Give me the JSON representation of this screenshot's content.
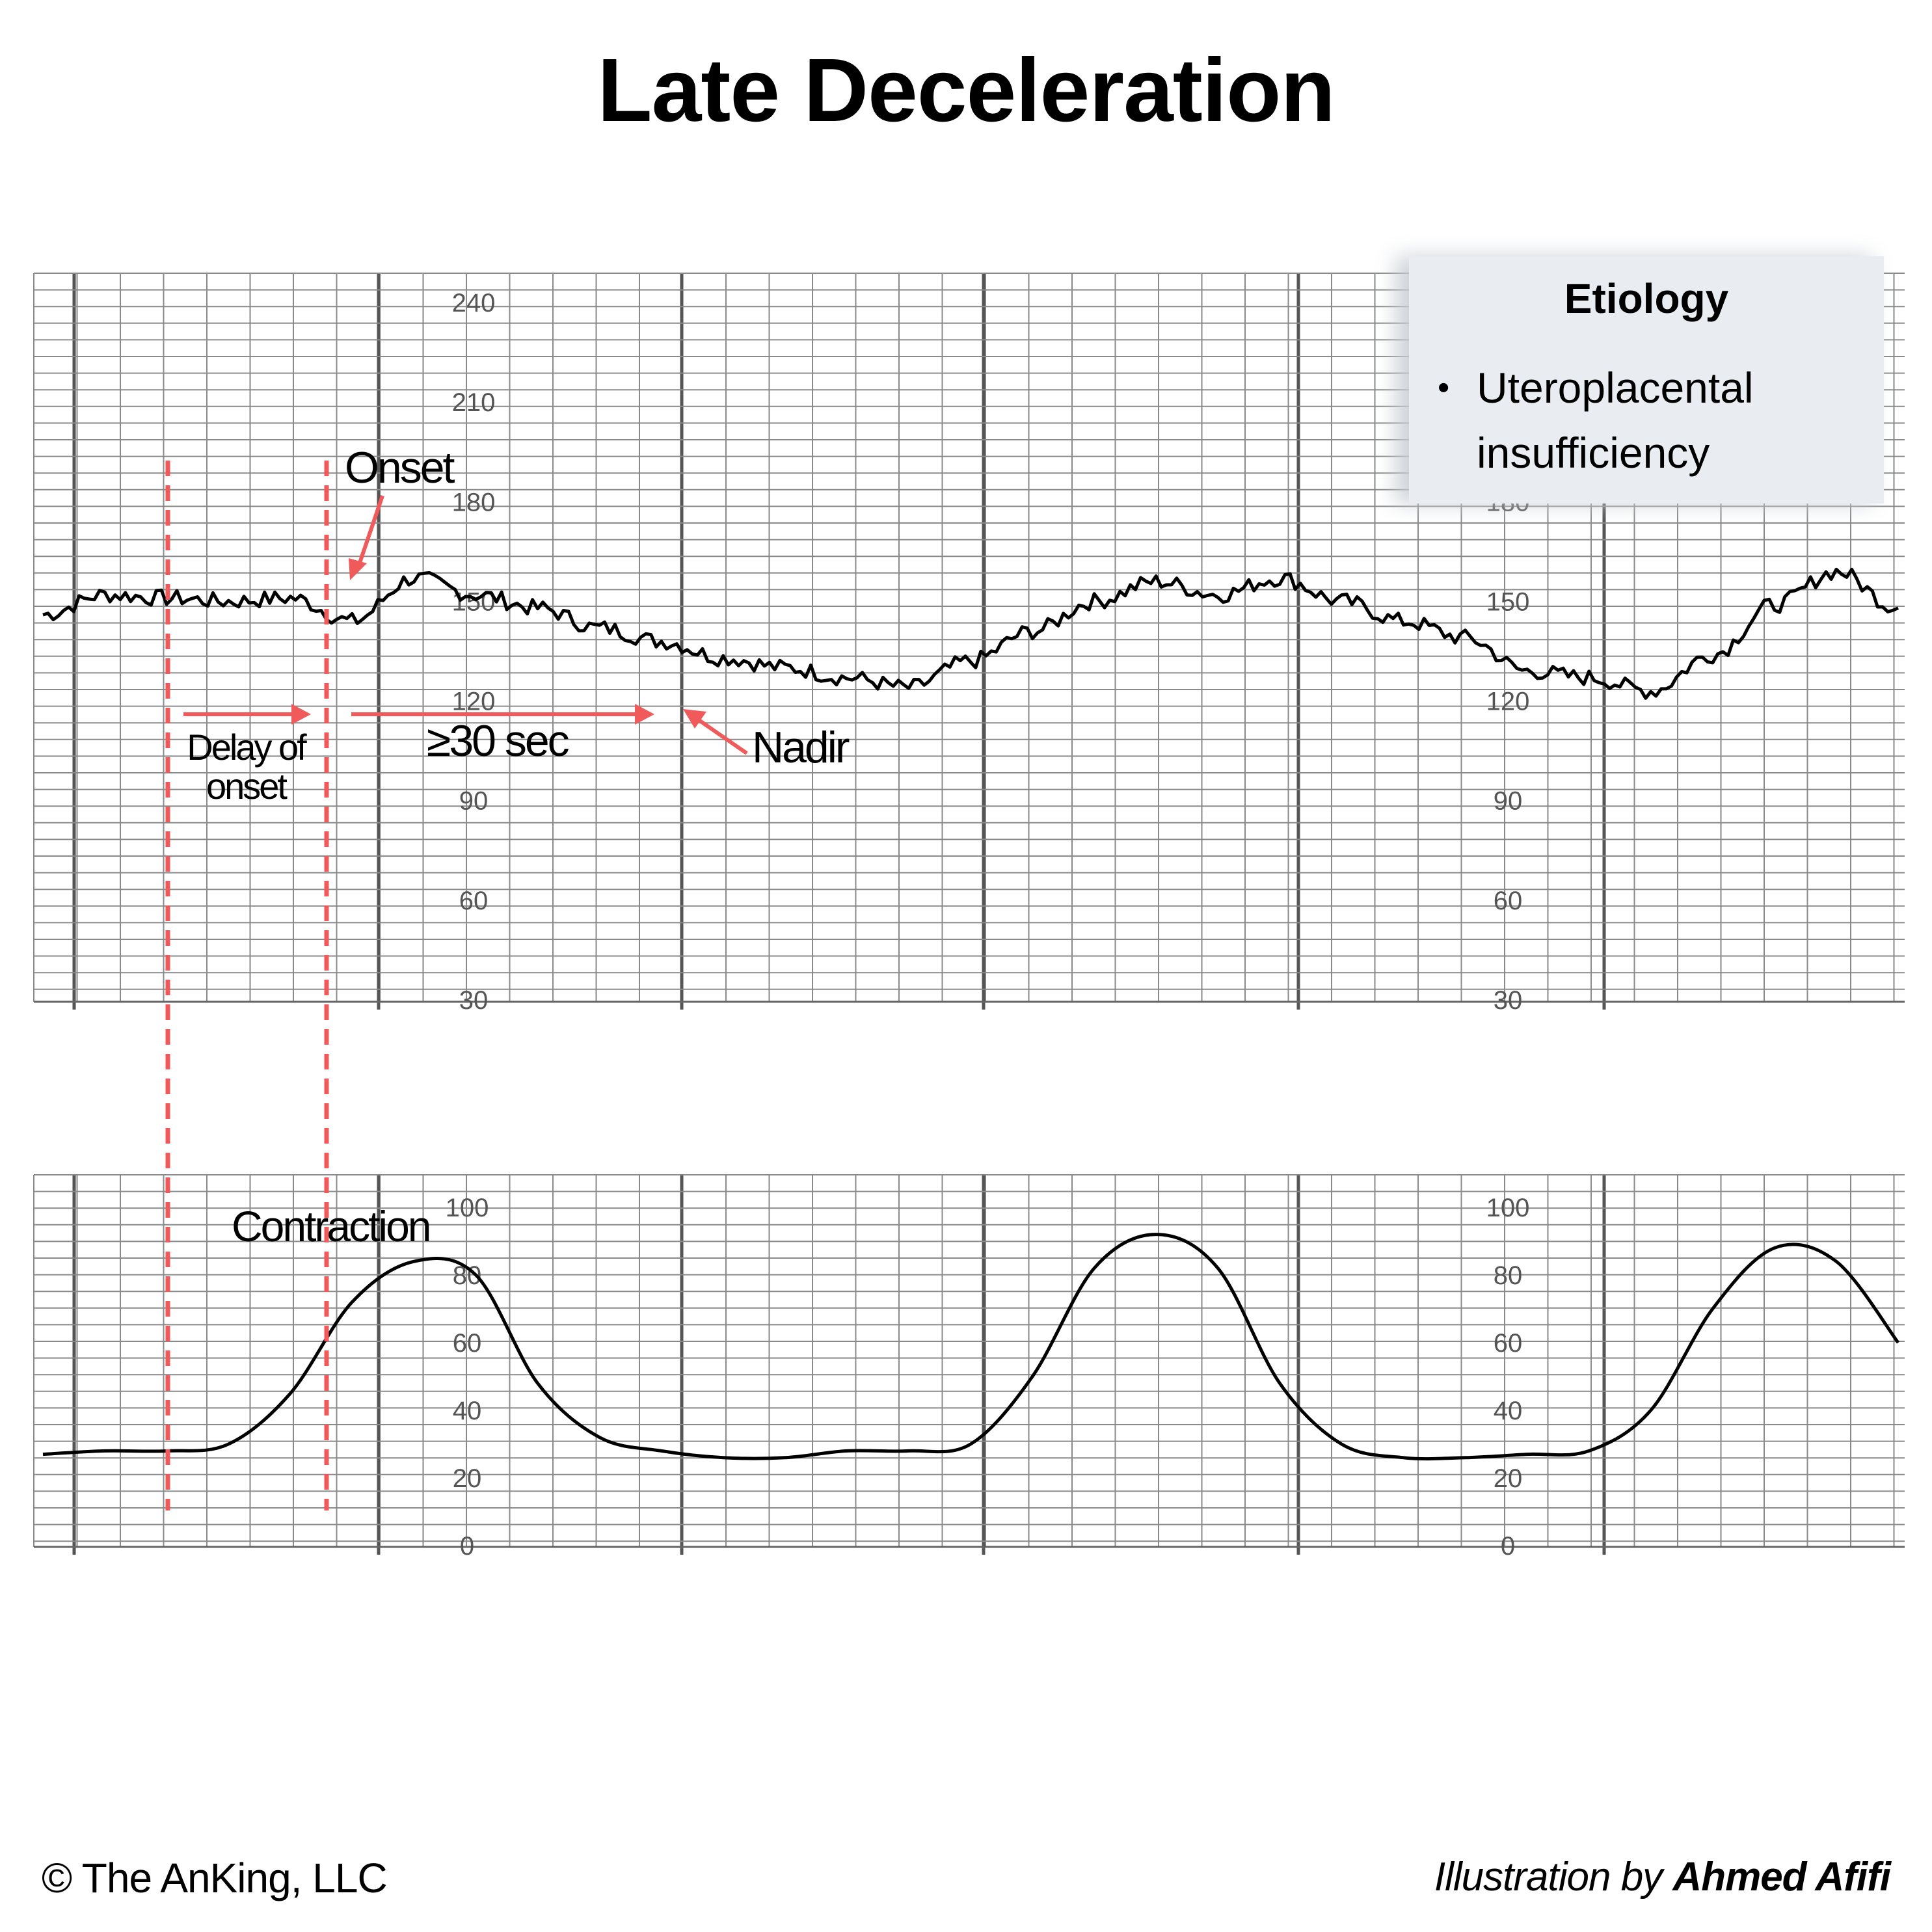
{
  "title": "Late Deceleration",
  "fhr_panel": {
    "y_ticks_left": [
      "240",
      "210",
      "180",
      "150",
      "120",
      "90",
      "60",
      "30"
    ],
    "y_ticks_right": [
      "180",
      "150",
      "120",
      "90",
      "60",
      "30"
    ],
    "y_range": [
      30,
      240
    ]
  },
  "uc_panel": {
    "y_ticks": [
      "100",
      "80",
      "60",
      "40",
      "20",
      "0"
    ],
    "y_range": [
      0,
      100
    ]
  },
  "annotations": {
    "onset": "Onset",
    "delay_line1": "Delay of",
    "delay_line2": "onset",
    "duration": "≥30 sec",
    "nadir": "Nadir",
    "contraction": "Contraction"
  },
  "etiology": {
    "title": "Etiology",
    "items": [
      "Uteroplacental insufficiency"
    ]
  },
  "footer": {
    "copyright": "© The AnKing, LLC",
    "credit_prefix": "Illustration by",
    "credit_name": "Ahmed Afifi"
  },
  "colors": {
    "annotation": "#f05a5a",
    "trace": "#000000",
    "grid": "#6b6b6b",
    "etiology_bg": "#e9ecf0"
  },
  "chart_data": [
    {
      "type": "line",
      "title": "",
      "xlabel": "",
      "ylabel": "",
      "ylim": [
        30,
        240
      ],
      "x": [
        0,
        2,
        4,
        6,
        8,
        10,
        12,
        14,
        16,
        18,
        20,
        22,
        24,
        26,
        28,
        30,
        32,
        34,
        36,
        38,
        40,
        42,
        44,
        46,
        48,
        50,
        52,
        54,
        56,
        58,
        60
      ],
      "series": [
        {
          "name": "",
          "values": [
            146,
            152,
            151,
            150,
            151,
            144,
            157,
            152,
            148,
            142,
            138,
            133,
            130,
            127,
            124,
            132,
            141,
            150,
            156,
            152,
            157,
            150,
            144,
            139,
            129,
            127,
            123,
            134,
            149,
            159,
            148
          ]
        }
      ]
    },
    {
      "type": "line",
      "title": "",
      "xlabel": "",
      "ylabel": "",
      "ylim": [
        0,
        100
      ],
      "x": [
        0,
        2,
        4,
        6,
        8,
        10,
        12,
        14,
        16,
        18,
        20,
        22,
        24,
        26,
        28,
        30,
        32,
        34,
        36,
        38,
        40,
        42,
        44,
        46,
        48,
        50,
        52,
        54,
        56,
        58,
        60
      ],
      "series": [
        {
          "name": "",
          "values": [
            27,
            28,
            28,
            30,
            45,
            72,
            84,
            80,
            48,
            32,
            28,
            26,
            26,
            28,
            28,
            30,
            50,
            82,
            92,
            82,
            48,
            30,
            26,
            26,
            27,
            28,
            40,
            70,
            88,
            84,
            60
          ]
        }
      ]
    }
  ]
}
